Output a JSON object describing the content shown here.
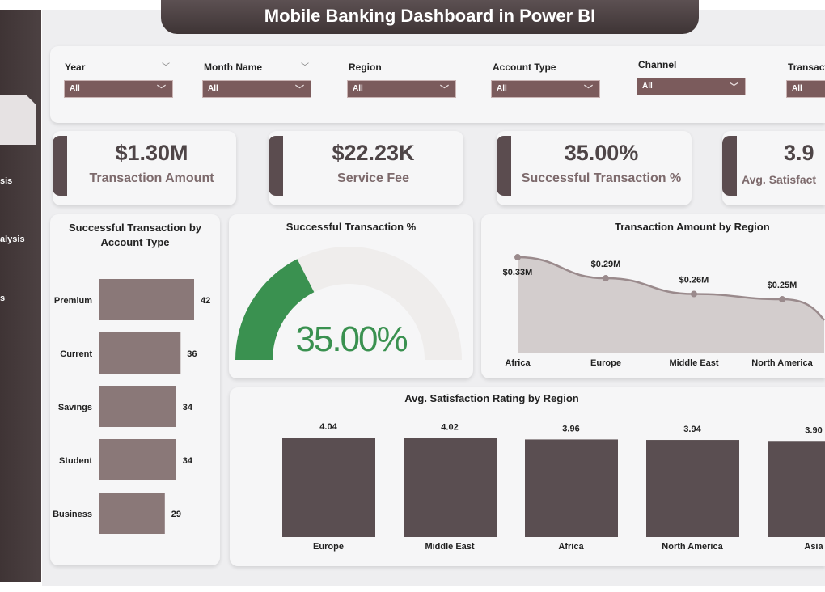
{
  "title": "Mobile Banking Dashboard in Power BI",
  "sidebar": {
    "items": [
      {
        "label": "sis"
      },
      {
        "label": "alysis"
      },
      {
        "label": "s"
      }
    ]
  },
  "filters": [
    {
      "label": "Year",
      "value": "All"
    },
    {
      "label": "Month Name",
      "value": "All"
    },
    {
      "label": "Region",
      "value": "All"
    },
    {
      "label": "Account Type",
      "value": "All"
    },
    {
      "label": "Channel",
      "value": "All"
    },
    {
      "label": "Transact",
      "value": "All"
    }
  ],
  "kpis": [
    {
      "value": "$1.30M",
      "label": "Transaction Amount"
    },
    {
      "value": "$22.23K",
      "label": "Service Fee"
    },
    {
      "value": "35.00%",
      "label": "Successful Transaction %"
    },
    {
      "value": "3.9",
      "label": "Avg. Satisfact"
    }
  ],
  "colors": {
    "accent": "#5b4c4f",
    "filter": "#7b5b5c",
    "gauge": "#3a9150",
    "bar_light": "#8a7878",
    "bar_dark": "#5a4e51",
    "area": "#d3cdcd",
    "line": "#9a8a8c"
  },
  "chart_data": [
    {
      "type": "bar",
      "orientation": "horizontal",
      "title": "Successful Transaction by Account Type",
      "categories": [
        "Premium",
        "Current",
        "Savings",
        "Student",
        "Business"
      ],
      "values": [
        42,
        36,
        34,
        34,
        29
      ],
      "value_labels": [
        "42",
        "36",
        "34",
        "34",
        "29"
      ]
    },
    {
      "type": "gauge",
      "title": "Successful Transaction %",
      "value": 35.0,
      "max": 100,
      "label": "35.00%"
    },
    {
      "type": "area",
      "title": "Transaction Amount by Region",
      "categories": [
        "Africa",
        "Europe",
        "Middle East",
        "North America"
      ],
      "values": [
        0.33,
        0.29,
        0.26,
        0.25
      ],
      "value_labels": [
        "$0.33M",
        "$0.29M",
        "$0.26M",
        "$0.25M"
      ],
      "unit": "$M"
    },
    {
      "type": "bar",
      "title": "Avg. Satisfaction Rating by Region",
      "categories": [
        "Europe",
        "Middle East",
        "Africa",
        "North America",
        "Asia"
      ],
      "values": [
        4.04,
        4.02,
        3.96,
        3.94,
        3.9
      ],
      "value_labels": [
        "4.04",
        "4.02",
        "3.96",
        "3.94",
        "3.90"
      ]
    }
  ]
}
